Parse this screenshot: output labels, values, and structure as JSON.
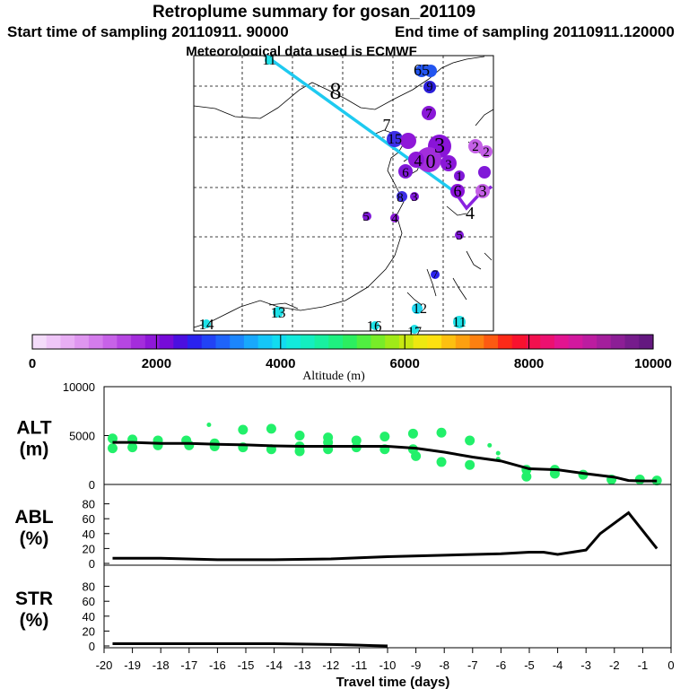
{
  "header": {
    "title": "Retroplume summary for gosan_201109",
    "start_label": "Start time of sampling 20110911. 90000",
    "end_label": "End time of sampling 20110911.120000",
    "met_label": "Meteorological data used is ECMWF"
  },
  "map_labels": [
    {
      "text": "11"
    },
    {
      "text": "8"
    },
    {
      "text": "7"
    },
    {
      "text": "65"
    },
    {
      "text": "9"
    },
    {
      "text": "7"
    },
    {
      "text": "15"
    },
    {
      "text": "3"
    },
    {
      "text": "2"
    },
    {
      "text": "2"
    },
    {
      "text": "4"
    },
    {
      "text": "0"
    },
    {
      "text": "6"
    },
    {
      "text": "6"
    },
    {
      "text": "1"
    },
    {
      "text": "3"
    },
    {
      "text": "3"
    },
    {
      "text": "8"
    },
    {
      "text": "3"
    },
    {
      "text": "5"
    },
    {
      "text": "4"
    },
    {
      "text": "4"
    },
    {
      "text": "5"
    },
    {
      "text": "7"
    },
    {
      "text": "13"
    },
    {
      "text": "12"
    },
    {
      "text": "14"
    },
    {
      "text": "16"
    },
    {
      "text": "11"
    },
    {
      "text": "17"
    }
  ],
  "colorbar": {
    "ticks": [
      "0",
      "2000",
      "4000",
      "6000",
      "8000",
      "10000"
    ],
    "label": "Altitude (m)",
    "colors": [
      "#f4dcfa",
      "#efc6f8",
      "#e8aef4",
      "#df96f0",
      "#d47cec",
      "#c762e8",
      "#b646e2",
      "#a42ddc",
      "#8f18d8",
      "#760bd8",
      "#4b0fe0",
      "#2a22ee",
      "#2243f6",
      "#1f64fa",
      "#1c86fc",
      "#18a8fc",
      "#14c6f8",
      "#12dcf0",
      "#12eadc",
      "#14eec0",
      "#18f0a0",
      "#1ef080",
      "#2cee60",
      "#50ee40",
      "#78ec28",
      "#a0ea18",
      "#c8e810",
      "#eee810",
      "#fde010",
      "#fdc010",
      "#fda010",
      "#fd8010",
      "#fd5a12",
      "#fc2a18",
      "#f8122e",
      "#f2104e",
      "#ec1070",
      "#e21490",
      "#d2189e",
      "#bc1ca0",
      "#a41e9c",
      "#8c1e96",
      "#761c8c",
      "#641880"
    ]
  },
  "chart_data": [
    {
      "type": "scatter",
      "name": "ALT",
      "label_line1": "ALT",
      "label_line2": "(m)",
      "ylim": [
        0,
        10000
      ],
      "yticks": [
        "10000",
        "5000",
        "0"
      ],
      "line": {
        "x": [
          -19.7,
          -19,
          -18,
          -17,
          -16,
          -15,
          -14,
          -13,
          -12,
          -11,
          -10,
          -9,
          -8,
          -7,
          -6,
          -5,
          -4,
          -3,
          -2,
          -1.5,
          -1,
          -0.5
        ],
        "y": [
          4300,
          4300,
          4200,
          4200,
          4100,
          4050,
          3950,
          3900,
          3900,
          3900,
          3900,
          3700,
          3300,
          2800,
          2400,
          1600,
          1500,
          1100,
          750,
          400,
          350,
          350
        ]
      },
      "points": [
        {
          "x": -19.7,
          "y": 4700
        },
        {
          "x": -19.7,
          "y": 3700
        },
        {
          "x": -19.0,
          "y": 4600
        },
        {
          "x": -19.0,
          "y": 3800
        },
        {
          "x": -18.1,
          "y": 4500
        },
        {
          "x": -18.1,
          "y": 4000
        },
        {
          "x": -17.1,
          "y": 4500
        },
        {
          "x": -17.0,
          "y": 4000
        },
        {
          "x": -16.1,
          "y": 4200
        },
        {
          "x": -16.1,
          "y": 3900
        },
        {
          "x": -15.1,
          "y": 5600
        },
        {
          "x": -15.1,
          "y": 3800
        },
        {
          "x": -14.1,
          "y": 5700
        },
        {
          "x": -14.1,
          "y": 3600
        },
        {
          "x": -13.1,
          "y": 5000
        },
        {
          "x": -13.1,
          "y": 3400
        },
        {
          "x": -12.1,
          "y": 4800
        },
        {
          "x": -12.1,
          "y": 4300
        },
        {
          "x": -11.1,
          "y": 4500
        },
        {
          "x": -11.1,
          "y": 3800
        },
        {
          "x": -10.1,
          "y": 4900
        },
        {
          "x": -10.1,
          "y": 3600
        },
        {
          "x": -9.1,
          "y": 5200
        },
        {
          "x": -9.1,
          "y": 3600
        },
        {
          "x": -8.1,
          "y": 5300
        },
        {
          "x": -8.1,
          "y": 2300
        },
        {
          "x": -7.1,
          "y": 4500
        },
        {
          "x": -7.1,
          "y": 2000
        },
        {
          "x": -6.1,
          "y": 3200
        },
        {
          "x": -6.1,
          "y": 2600
        },
        {
          "x": -5.1,
          "y": 1500
        },
        {
          "x": -5.1,
          "y": 800
        },
        {
          "x": -4.1,
          "y": 1500
        },
        {
          "x": -4.1,
          "y": 1100
        },
        {
          "x": -3.1,
          "y": 1000
        },
        {
          "x": -2.1,
          "y": 500
        },
        {
          "x": -1.1,
          "y": 500
        },
        {
          "x": -0.5,
          "y": 400
        },
        {
          "x": -16.3,
          "y": 6100
        },
        {
          "x": -6.4,
          "y": 4000
        },
        {
          "x": -13.1,
          "y": 3900
        },
        {
          "x": -9.0,
          "y": 2900
        },
        {
          "x": -12.1,
          "y": 3600
        }
      ]
    },
    {
      "type": "line",
      "name": "ABL",
      "label_line1": "ABL",
      "label_line2": "(%)",
      "ylim": [
        0,
        100
      ],
      "yticks": [
        "80",
        "60",
        "40",
        "20",
        "0"
      ],
      "x": [
        -19.7,
        -18,
        -16,
        -14,
        -12,
        -10,
        -8,
        -6,
        -5,
        -4.5,
        -4,
        -3,
        -2.5,
        -1.5,
        -0.5
      ],
      "y": [
        7,
        7,
        5,
        5,
        6,
        9,
        11,
        13,
        15,
        15,
        12,
        18,
        40,
        68,
        20
      ]
    },
    {
      "type": "line",
      "name": "STR",
      "label_line1": "STR",
      "label_line2": "(%)",
      "ylim": [
        0,
        100
      ],
      "yticks": [
        "80",
        "60",
        "40",
        "20",
        "0"
      ],
      "x": [
        -19.7,
        -18,
        -16,
        -14,
        -12,
        -11,
        -10.5,
        -10
      ],
      "y": [
        3,
        3,
        3,
        3,
        2,
        1,
        0.5,
        0
      ]
    }
  ],
  "xaxis": {
    "ticks": [
      "-20",
      "-19",
      "-18",
      "-17",
      "-16",
      "-15",
      "-14",
      "-13",
      "-12",
      "-11",
      "-10",
      "-9",
      "-8",
      "-7",
      "-6",
      "-5",
      "-4",
      "-3",
      "-2",
      "-1",
      "0"
    ],
    "label": "Travel time (days)"
  }
}
